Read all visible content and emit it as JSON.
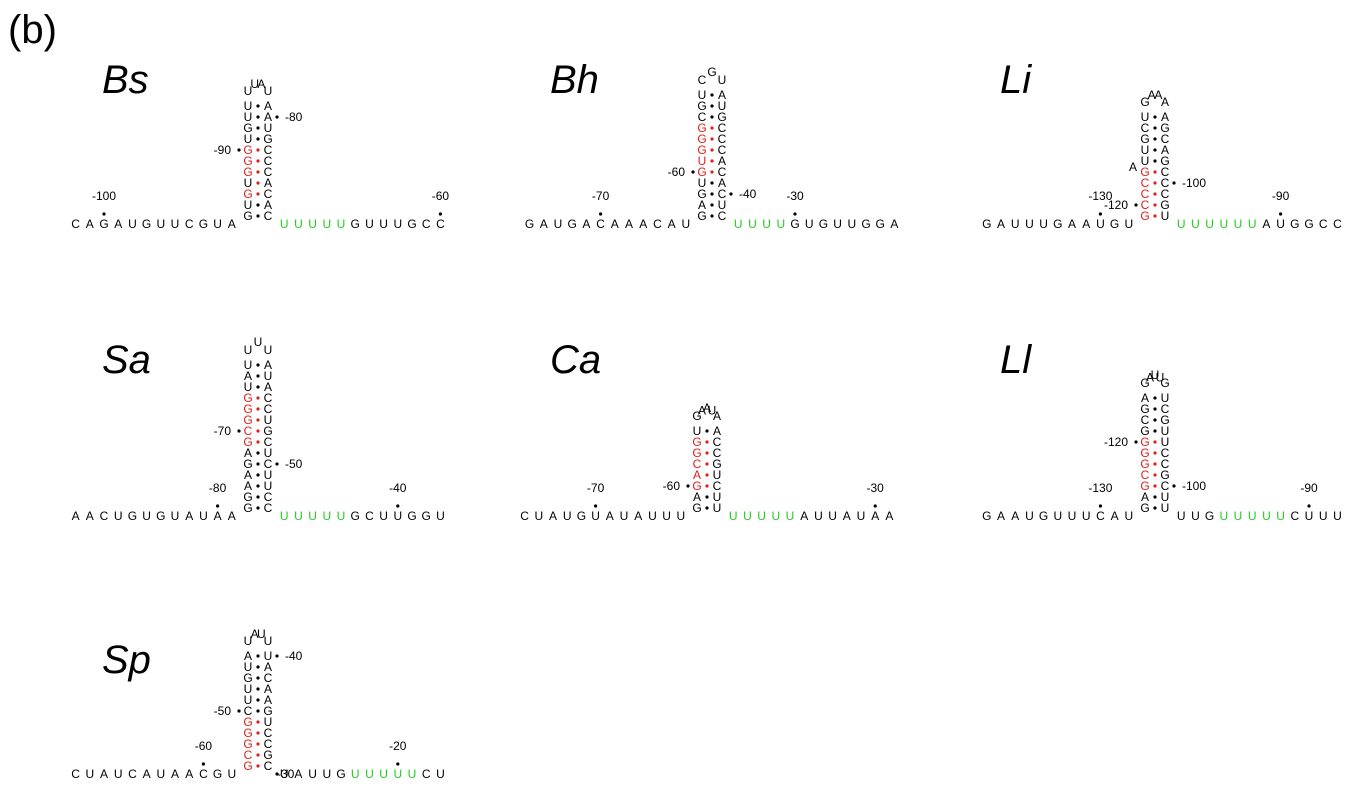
{
  "figure": {
    "panel_label": "(b)",
    "colors": {
      "default": "#000000",
      "conserved": "#e0201b",
      "u_tract": "#22cc22"
    },
    "structures": [
      {
        "species": "Bs",
        "strand5": "CAGAUGUUCGUA",
        "stem": [
          [
            "G",
            "C",
            ""
          ],
          [
            "U",
            "A",
            ""
          ],
          [
            "G",
            "C",
            "cr"
          ],
          [
            "U",
            "A",
            "r"
          ],
          [
            "G",
            "C",
            "cr"
          ],
          [
            "G",
            "C",
            "cr"
          ],
          [
            "G",
            "C",
            "cr"
          ],
          [
            "U",
            "G",
            ""
          ],
          [
            "G",
            "U",
            ""
          ],
          [
            "U",
            "A",
            ""
          ],
          [
            "U",
            "A",
            ""
          ]
        ],
        "loop": [
          "U",
          "U",
          "A",
          "U"
        ],
        "strand3": [
          [
            "U",
            "g"
          ],
          [
            "U",
            "g"
          ],
          [
            "U",
            "g"
          ],
          [
            "U",
            "g"
          ],
          [
            "U",
            "g"
          ],
          [
            "G",
            ""
          ],
          [
            "U",
            ""
          ],
          [
            "U",
            ""
          ],
          [
            "U",
            ""
          ],
          [
            "G",
            ""
          ],
          [
            "C",
            ""
          ],
          [
            "C",
            ""
          ]
        ],
        "positions": [
          {
            "label": "-100",
            "side": "L",
            "at": 2
          },
          {
            "label": "-90",
            "side": "SL",
            "at": 6
          },
          {
            "label": "-80",
            "side": "SR",
            "at": 9
          },
          {
            "label": "-60",
            "side": "R",
            "at": 11
          }
        ]
      },
      {
        "species": "Bh",
        "strand5": "GAUGACAAACAU",
        "stem": [
          [
            "G",
            "C",
            ""
          ],
          [
            "A",
            "U",
            ""
          ],
          [
            "G",
            "C",
            ""
          ],
          [
            "U",
            "A",
            ""
          ],
          [
            "G",
            "C",
            "cr"
          ],
          [
            "U",
            "A",
            "cr"
          ],
          [
            "G",
            "C",
            "cr"
          ],
          [
            "G",
            "C",
            "cr"
          ],
          [
            "G",
            "C",
            "cr"
          ],
          [
            "C",
            "G",
            ""
          ],
          [
            "G",
            "U",
            ""
          ],
          [
            "U",
            "A",
            ""
          ]
        ],
        "loop": [
          "C",
          "G",
          "U"
        ],
        "strand3": [
          [
            "U",
            "g"
          ],
          [
            "U",
            "g"
          ],
          [
            "U",
            "g"
          ],
          [
            "U",
            "g"
          ],
          [
            "G",
            ""
          ],
          [
            "U",
            ""
          ],
          [
            "G",
            ""
          ],
          [
            "U",
            ""
          ],
          [
            "U",
            ""
          ],
          [
            "G",
            ""
          ],
          [
            "G",
            ""
          ],
          [
            "A",
            ""
          ]
        ],
        "positions": [
          {
            "label": "-70",
            "side": "L",
            "at": 5
          },
          {
            "label": "-60",
            "side": "SL",
            "at": 4
          },
          {
            "label": "-40",
            "side": "SR",
            "at": 2
          },
          {
            "label": "-30",
            "side": "R",
            "at": 4
          }
        ]
      },
      {
        "species": "Li",
        "strand5": "GAUUUGAAUGU",
        "stem": [
          [
            "G",
            "U",
            "cr"
          ],
          [
            "C",
            "G",
            "cr"
          ],
          [
            "C",
            "C",
            "cr"
          ],
          [
            "C",
            "C",
            "cr"
          ],
          [
            "G",
            "C",
            "cr"
          ],
          [
            "U",
            "G",
            ""
          ],
          [
            "U",
            "A",
            ""
          ],
          [
            "G",
            "C",
            ""
          ],
          [
            "C",
            "G",
            ""
          ],
          [
            "U",
            "A",
            ""
          ]
        ],
        "loop": [
          "G",
          "A",
          "A",
          "A"
        ],
        "bulge": "A",
        "strand3": [
          [
            "U",
            "g"
          ],
          [
            "U",
            "g"
          ],
          [
            "U",
            "g"
          ],
          [
            "U",
            "g"
          ],
          [
            "U",
            "g"
          ],
          [
            "U",
            "g"
          ],
          [
            "A",
            ""
          ],
          [
            "U",
            ""
          ],
          [
            "G",
            ""
          ],
          [
            "G",
            ""
          ],
          [
            "C",
            ""
          ],
          [
            "C",
            ""
          ]
        ],
        "positions": [
          {
            "label": "-130",
            "side": "L",
            "at": 8
          },
          {
            "label": "-120",
            "side": "SL",
            "at": 1
          },
          {
            "label": "-100",
            "side": "SR",
            "at": 3
          },
          {
            "label": "-90",
            "side": "R",
            "at": 7
          }
        ]
      },
      {
        "species": "Sa",
        "strand5": "AACUGUGUAUAA",
        "stem": [
          [
            "G",
            "C",
            ""
          ],
          [
            "G",
            "C",
            ""
          ],
          [
            "A",
            "U",
            ""
          ],
          [
            "A",
            "U",
            ""
          ],
          [
            "G",
            "C",
            ""
          ],
          [
            "A",
            "U",
            ""
          ],
          [
            "G",
            "C",
            "cr"
          ],
          [
            "C",
            "G",
            "cr"
          ],
          [
            "G",
            "U",
            "cr"
          ],
          [
            "G",
            "C",
            "cr"
          ],
          [
            "G",
            "C",
            "cr"
          ],
          [
            "U",
            "A",
            ""
          ],
          [
            "A",
            "U",
            ""
          ],
          [
            "U",
            "A",
            ""
          ]
        ],
        "loop": [
          "U",
          "U",
          "U"
        ],
        "strand3": [
          [
            "U",
            "g"
          ],
          [
            "U",
            "g"
          ],
          [
            "U",
            "g"
          ],
          [
            "U",
            "g"
          ],
          [
            "U",
            "g"
          ],
          [
            "G",
            ""
          ],
          [
            "C",
            ""
          ],
          [
            "U",
            ""
          ],
          [
            "U",
            ""
          ],
          [
            "G",
            ""
          ],
          [
            "G",
            ""
          ],
          [
            "U",
            ""
          ]
        ],
        "positions": [
          {
            "label": "-80",
            "side": "L",
            "at": 10
          },
          {
            "label": "-70",
            "side": "SL",
            "at": 7
          },
          {
            "label": "-50",
            "side": "SR",
            "at": 4
          },
          {
            "label": "-40",
            "side": "R",
            "at": 8
          }
        ]
      },
      {
        "species": "Ca",
        "strand5": "CUAUGUAUAUUU",
        "stem": [
          [
            "G",
            "U",
            ""
          ],
          [
            "A",
            "U",
            ""
          ],
          [
            "G",
            "C",
            "cr"
          ],
          [
            "A",
            "U",
            "cr"
          ],
          [
            "C",
            "G",
            "cr"
          ],
          [
            "G",
            "C",
            "cr"
          ],
          [
            "G",
            "C",
            "cr"
          ],
          [
            "U",
            "A",
            ""
          ]
        ],
        "loop": [
          "G",
          "A",
          "A",
          "U",
          "A"
        ],
        "strand3": [
          [
            "U",
            "g"
          ],
          [
            "U",
            "g"
          ],
          [
            "U",
            "g"
          ],
          [
            "U",
            "g"
          ],
          [
            "U",
            "g"
          ],
          [
            "A",
            ""
          ],
          [
            "U",
            ""
          ],
          [
            "U",
            ""
          ],
          [
            "A",
            ""
          ],
          [
            "U",
            ""
          ],
          [
            "A",
            ""
          ],
          [
            "A",
            ""
          ]
        ],
        "positions": [
          {
            "label": "-70",
            "side": "L",
            "at": 5
          },
          {
            "label": "-60",
            "side": "SL",
            "at": 2
          },
          {
            "label": "-30",
            "side": "R",
            "at": 10
          }
        ]
      },
      {
        "species": "Ll",
        "strand5": "GAAUGUUUCAU",
        "stem": [
          [
            "G",
            "U",
            ""
          ],
          [
            "A",
            "U",
            ""
          ],
          [
            "G",
            "C",
            "cr"
          ],
          [
            "C",
            "G",
            "cr"
          ],
          [
            "G",
            "C",
            "cr"
          ],
          [
            "G",
            "C",
            "cr"
          ],
          [
            "G",
            "U",
            "cr"
          ],
          [
            "G",
            "U",
            ""
          ],
          [
            "C",
            "G",
            ""
          ],
          [
            "G",
            "C",
            ""
          ],
          [
            "A",
            "U",
            ""
          ]
        ],
        "loop": [
          "G",
          "A",
          "U",
          "U",
          "G"
        ],
        "strand3": [
          [
            "U",
            ""
          ],
          [
            "U",
            ""
          ],
          [
            "G",
            ""
          ],
          [
            "U",
            "g"
          ],
          [
            "U",
            "g"
          ],
          [
            "U",
            "g"
          ],
          [
            "U",
            "g"
          ],
          [
            "U",
            "g"
          ],
          [
            "C",
            ""
          ],
          [
            "U",
            ""
          ],
          [
            "U",
            ""
          ],
          [
            "U",
            ""
          ]
        ],
        "positions": [
          {
            "label": "-130",
            "side": "L",
            "at": 8
          },
          {
            "label": "-120",
            "side": "SL",
            "at": 6
          },
          {
            "label": "-100",
            "side": "SR",
            "at": 2
          },
          {
            "label": "-90",
            "side": "R",
            "at": 9
          }
        ]
      },
      {
        "species": "Sp",
        "strand5": "CUAUCAUAACGU",
        "stem": [
          [
            "G",
            "C",
            "cr"
          ],
          [
            "C",
            "G",
            "cr"
          ],
          [
            "G",
            "C",
            "cr"
          ],
          [
            "G",
            "C",
            "cr"
          ],
          [
            "G",
            "U",
            "cr"
          ],
          [
            "C",
            "G",
            ""
          ],
          [
            "U",
            "A",
            ""
          ],
          [
            "U",
            "A",
            ""
          ],
          [
            "G",
            "C",
            ""
          ],
          [
            "U",
            "A",
            ""
          ],
          [
            "A",
            "U",
            ""
          ]
        ],
        "loop": [
          "U",
          "A",
          "U",
          "U"
        ],
        "strand3": [
          [
            "U",
            ""
          ],
          [
            "A",
            ""
          ],
          [
            "U",
            ""
          ],
          [
            "U",
            ""
          ],
          [
            "G",
            ""
          ],
          [
            "U",
            "g"
          ],
          [
            "U",
            "g"
          ],
          [
            "U",
            "g"
          ],
          [
            "U",
            "g"
          ],
          [
            "U",
            "g"
          ],
          [
            "C",
            ""
          ],
          [
            "U",
            ""
          ]
        ],
        "positions": [
          {
            "label": "-60",
            "side": "L",
            "at": 9
          },
          {
            "label": "-50",
            "side": "SL",
            "at": 5
          },
          {
            "label": "-40",
            "side": "SR",
            "at": 10
          },
          {
            "label": "-30",
            "side": "ST",
            "at": 0
          },
          {
            "label": "-20",
            "side": "R",
            "at": 8
          }
        ]
      }
    ]
  }
}
